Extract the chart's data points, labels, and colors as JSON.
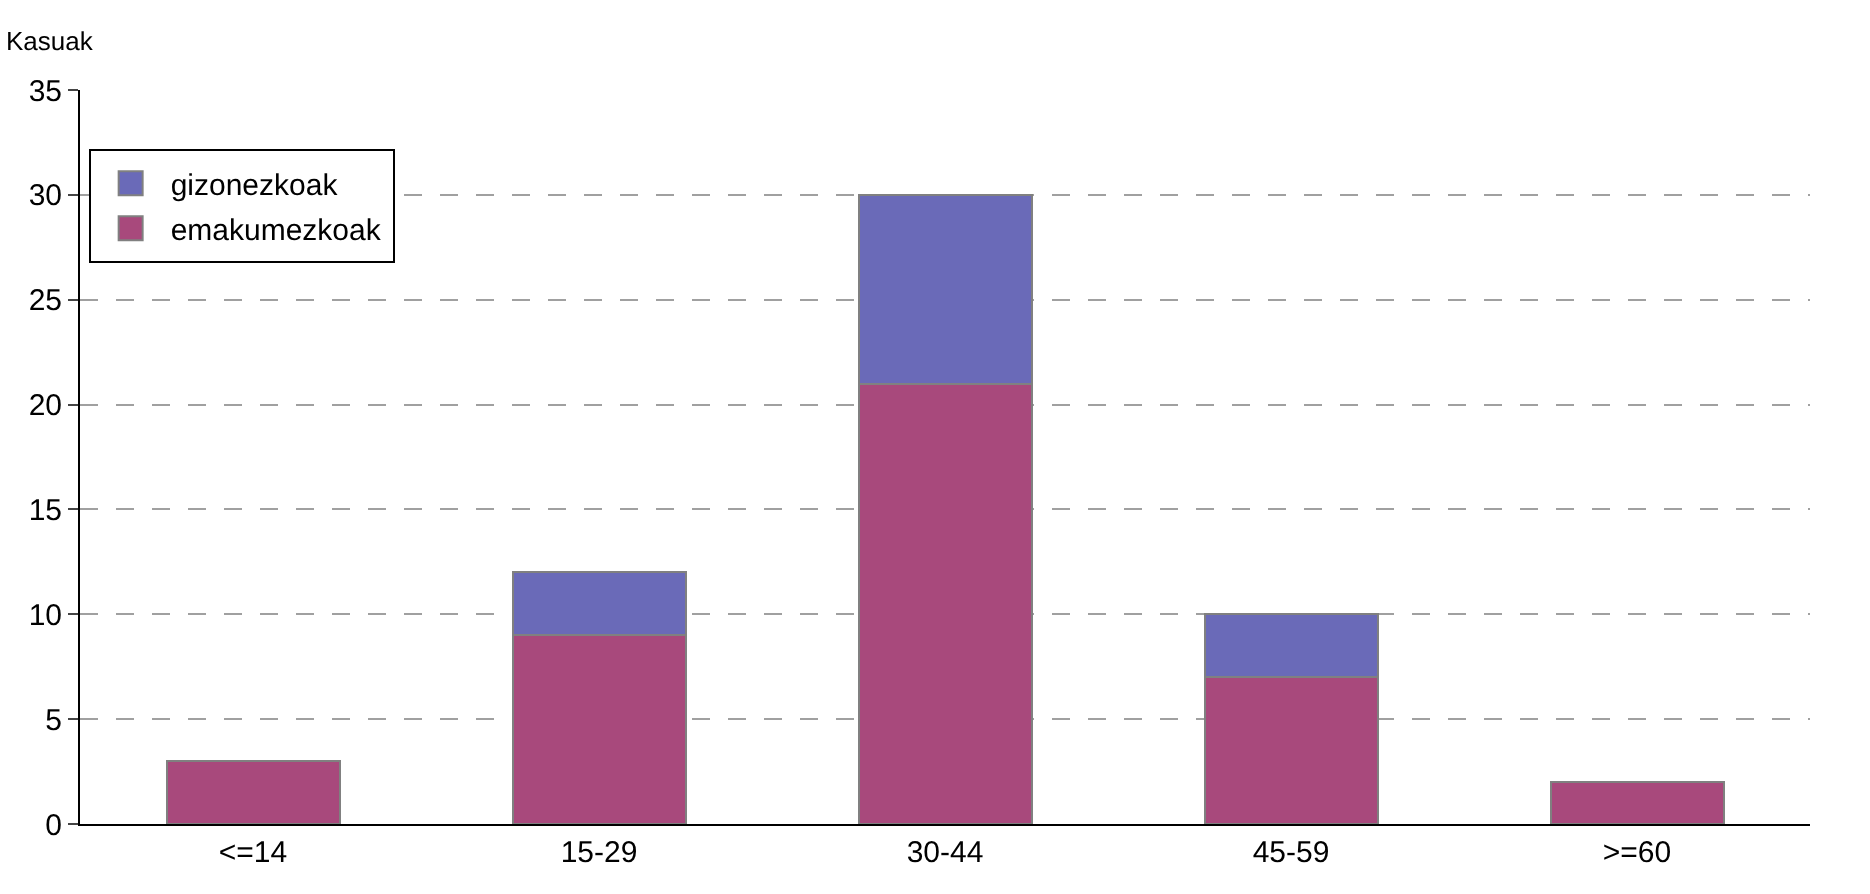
{
  "chart_data": {
    "type": "bar",
    "ylabel": "Kasuak",
    "categories": [
      "<=14",
      "15-29",
      "30-44",
      "45-59",
      ">=60"
    ],
    "series": [
      {
        "name": "emakumezkoak",
        "color": "#a8497c",
        "values": [
          3,
          9,
          21,
          7,
          2
        ]
      },
      {
        "name": "gizonezkoak",
        "color": "#6a6ab8",
        "values": [
          null,
          3,
          9,
          3,
          null
        ]
      }
    ],
    "stacked": true,
    "ylim": [
      0,
      35
    ],
    "yticks": [
      0,
      5,
      10,
      15,
      20,
      25,
      30,
      35
    ],
    "grid": "y",
    "legend": "top left"
  }
}
